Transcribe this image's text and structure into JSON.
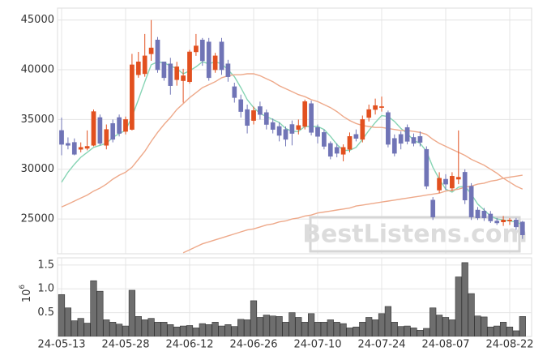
{
  "chart_data": {
    "type": "candlestick",
    "categories": [
      "24-05-13",
      null,
      null,
      null,
      null,
      null,
      null,
      null,
      null,
      null,
      "24-05-28",
      null,
      null,
      null,
      null,
      null,
      null,
      null,
      null,
      null,
      "24-06-12",
      null,
      null,
      null,
      null,
      null,
      null,
      null,
      null,
      null,
      "24-06-26",
      null,
      null,
      null,
      null,
      null,
      null,
      null,
      null,
      null,
      "24-07-10",
      null,
      null,
      null,
      null,
      null,
      null,
      null,
      null,
      null,
      "24-07-24",
      null,
      null,
      null,
      null,
      null,
      null,
      null,
      null,
      null,
      "24-08-07",
      null,
      null,
      null,
      null,
      null,
      null,
      null,
      null,
      null,
      "24-08-22",
      null,
      null
    ],
    "open": [
      33900,
      32600,
      32700,
      32000,
      32100,
      32400,
      35200,
      32400,
      34600,
      35200,
      33800,
      34000,
      39500,
      39600,
      41600,
      43000,
      40800,
      40600,
      39000,
      38900,
      38800,
      41800,
      43000,
      42800,
      40000,
      42800,
      40600,
      38300,
      37000,
      36000,
      34900,
      36300,
      35700,
      34700,
      34300,
      34000,
      34500,
      34000,
      34300,
      36600,
      34200,
      33700,
      32600,
      32200,
      31500,
      32000,
      33500,
      33000,
      35200,
      36000,
      36200,
      35700,
      33100,
      33500,
      34200,
      33200,
      33300,
      32000,
      26900,
      27900,
      29000,
      28100,
      29000,
      29700,
      28300,
      25900,
      25800,
      25500,
      24800,
      24700,
      24800,
      24900,
      24700
    ],
    "high": [
      35200,
      33200,
      33100,
      32700,
      33900,
      36000,
      35500,
      34500,
      35000,
      35500,
      35300,
      41600,
      41800,
      43600,
      45000,
      43300,
      40800,
      41200,
      40800,
      40100,
      42000,
      43600,
      43200,
      43200,
      41700,
      43200,
      41000,
      38700,
      37500,
      36500,
      36300,
      36800,
      36000,
      35100,
      34700,
      34300,
      34900,
      35000,
      37000,
      36900,
      34500,
      34000,
      32800,
      32600,
      32500,
      33700,
      34000,
      35400,
      36500,
      37100,
      37300,
      35900,
      33500,
      33800,
      34500,
      33600,
      33800,
      32300,
      27200,
      29700,
      29500,
      29700,
      33900,
      30000,
      28600,
      26200,
      26100,
      25800,
      25100,
      25300,
      25100,
      25100,
      24800
    ],
    "low": [
      31400,
      32000,
      31400,
      31700,
      31900,
      32300,
      32400,
      32000,
      32700,
      33300,
      33500,
      33900,
      39200,
      39300,
      40900,
      39700,
      38900,
      37500,
      38400,
      36700,
      38600,
      41400,
      40400,
      38900,
      39700,
      39500,
      38800,
      36700,
      35200,
      33600,
      34500,
      35000,
      34000,
      33600,
      32800,
      32300,
      32400,
      33500,
      34000,
      33400,
      32600,
      32000,
      31000,
      31200,
      30800,
      31700,
      32800,
      32700,
      34800,
      35500,
      35800,
      32200,
      31300,
      32000,
      32500,
      32300,
      32300,
      28000,
      24900,
      27600,
      27900,
      27800,
      28500,
      26500,
      24900,
      24900,
      24800,
      24600,
      24400,
      24300,
      24400,
      23900,
      23000
    ],
    "close": [
      32500,
      32400,
      31500,
      32200,
      32300,
      35800,
      32600,
      34000,
      33000,
      33600,
      35000,
      40500,
      40800,
      41400,
      42200,
      40000,
      39200,
      38400,
      40300,
      39400,
      41800,
      42400,
      40900,
      39200,
      41400,
      40000,
      39300,
      37200,
      35800,
      34400,
      35900,
      35500,
      34500,
      34000,
      33400,
      33000,
      33600,
      34400,
      36800,
      33700,
      33300,
      32300,
      31300,
      31600,
      32200,
      33300,
      33100,
      35000,
      36000,
      36400,
      36300,
      32500,
      31600,
      32600,
      32800,
      32600,
      32700,
      28300,
      25200,
      29100,
      28500,
      29300,
      29200,
      26900,
      25200,
      25100,
      25100,
      24800,
      24600,
      24900,
      24900,
      24200,
      23400
    ],
    "up_color": "#e2501f",
    "down_color": "#7074b6",
    "ylim": [
      21500,
      46200
    ],
    "yticks": [
      25000,
      30000,
      35000,
      40000,
      45000
    ],
    "grid": true,
    "lines": [
      {
        "color": "#86d4b4",
        "values": [
          28700,
          29700,
          30500,
          31200,
          31700,
          32200,
          32400,
          32600,
          33200,
          33600,
          33900,
          35300,
          37000,
          38800,
          40500,
          40800,
          40700,
          40400,
          40100,
          39600,
          39900,
          40300,
          40800,
          40600,
          40800,
          40600,
          40000,
          39300,
          38200,
          37000,
          36200,
          35600,
          35300,
          35000,
          34700,
          34100,
          33800,
          33800,
          34300,
          34300,
          34300,
          34000,
          33300,
          32500,
          31900,
          31900,
          32200,
          33000,
          33900,
          34700,
          35400,
          35300,
          34800,
          34100,
          33600,
          32900,
          32600,
          31800,
          30200,
          29000,
          28000,
          27700,
          28200,
          28300,
          27500,
          26500,
          25900,
          25300,
          25000,
          24900,
          24800,
          24700,
          24400
        ]
      },
      {
        "color": "#eea98a",
        "values": [
          26200,
          26500,
          26800,
          27100,
          27400,
          27800,
          28100,
          28500,
          29000,
          29400,
          29700,
          30200,
          31000,
          31800,
          32800,
          33700,
          34500,
          35200,
          36000,
          36600,
          37200,
          37700,
          38200,
          38500,
          38800,
          39200,
          39400,
          39500,
          39500,
          39600,
          39600,
          39400,
          39100,
          38800,
          38400,
          38100,
          37800,
          37500,
          37300,
          37000,
          36800,
          36500,
          36200,
          35800,
          35300,
          34900,
          34600,
          34400,
          34300,
          34200,
          34200,
          34100,
          34000,
          33900,
          33900,
          33800,
          33700,
          33500,
          33000,
          32600,
          32300,
          32000,
          31700,
          31400,
          31000,
          30700,
          30400,
          30000,
          29600,
          29100,
          28700,
          28300,
          28000
        ]
      },
      {
        "color": "#eea98a",
        "values": [
          null,
          null,
          null,
          null,
          null,
          null,
          null,
          null,
          null,
          null,
          null,
          null,
          null,
          null,
          null,
          null,
          null,
          null,
          null,
          21600,
          21900,
          22200,
          22500,
          22700,
          22900,
          23100,
          23300,
          23500,
          23700,
          23900,
          24000,
          24200,
          24400,
          24500,
          24700,
          24800,
          25000,
          25100,
          25300,
          25400,
          25600,
          25700,
          25800,
          25900,
          26000,
          26100,
          26300,
          26400,
          26500,
          26600,
          26700,
          26800,
          26900,
          27000,
          27100,
          27200,
          27300,
          27400,
          27500,
          27600,
          27800,
          27900,
          28000,
          28200,
          28300,
          28500,
          28600,
          28800,
          28900,
          29100,
          29200,
          29300,
          29400
        ]
      }
    ],
    "volume": {
      "type": "bar",
      "color": "#6e6e6e",
      "values": [
        880000,
        600000,
        330000,
        380000,
        280000,
        1170000,
        950000,
        350000,
        300000,
        260000,
        220000,
        970000,
        420000,
        350000,
        380000,
        300000,
        300000,
        250000,
        200000,
        220000,
        230000,
        180000,
        270000,
        250000,
        300000,
        220000,
        250000,
        210000,
        360000,
        350000,
        750000,
        400000,
        450000,
        430000,
        420000,
        300000,
        500000,
        400000,
        300000,
        480000,
        300000,
        300000,
        350000,
        300000,
        270000,
        180000,
        200000,
        300000,
        400000,
        350000,
        480000,
        630000,
        300000,
        210000,
        220000,
        180000,
        130000,
        170000,
        600000,
        450000,
        400000,
        350000,
        1250000,
        1550000,
        900000,
        430000,
        410000,
        200000,
        220000,
        300000,
        200000,
        120000,
        420000
      ],
      "ylim": [
        0,
        1650000
      ],
      "yticks": [
        {
          "value": 500000,
          "label": "0.5"
        },
        {
          "value": 1000000,
          "label": "1.0"
        },
        {
          "value": 1500000,
          "label": "1.5"
        }
      ],
      "scale_label": {
        "base": "10",
        "exponent": "6"
      }
    },
    "watermark": "BestListens.com"
  }
}
